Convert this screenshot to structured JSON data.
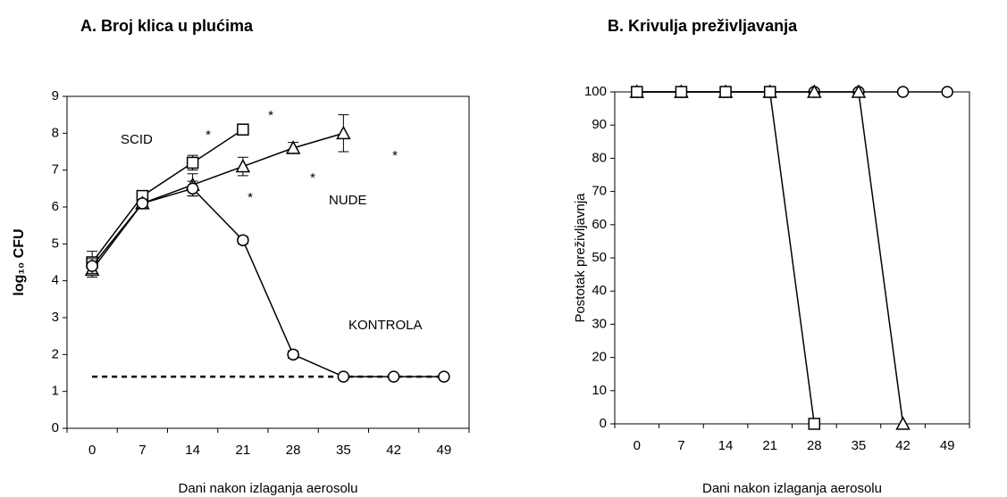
{
  "chart_data": [
    {
      "type": "line",
      "title": "A. Broj klica u plućima",
      "x_label": "Dani nakon izlaganja aerosolu",
      "y_label": "log₁₀ CFU",
      "categories": [
        0,
        7,
        14,
        21,
        28,
        35,
        42,
        49
      ],
      "ylim": [
        0,
        9
      ],
      "yticks": [
        0,
        1,
        2,
        3,
        4,
        5,
        6,
        7,
        8,
        9
      ],
      "reference_line": 1.4,
      "series": [
        {
          "name": "SCID",
          "marker": "square",
          "color": "#000000",
          "values": [
            4.5,
            6.3,
            7.2,
            8.1,
            null,
            null,
            null,
            null
          ],
          "errors": [
            0.3,
            0.1,
            0.2,
            0.1,
            null,
            null,
            null,
            null
          ]
        },
        {
          "name": "NUDE",
          "marker": "triangle",
          "color": "#000000",
          "values": [
            4.3,
            6.1,
            6.6,
            7.1,
            7.6,
            8.0,
            null,
            null
          ],
          "errors": [
            0.2,
            0.1,
            0.3,
            0.25,
            0.15,
            0.5,
            null,
            null
          ]
        },
        {
          "name": "KONTROLA",
          "marker": "circle",
          "color": "#000000",
          "values": [
            4.4,
            6.1,
            6.5,
            5.1,
            2.0,
            1.4,
            1.4,
            1.4
          ],
          "errors": [
            0.2,
            0.1,
            0.2,
            0.1,
            0.1,
            0.05,
            0.05,
            0.05
          ]
        }
      ],
      "annotations": [
        "*",
        "*",
        "*",
        "*",
        "*"
      ]
    },
    {
      "type": "line",
      "title": "B. Krivulja preživljavanja",
      "x_label": "Dani nakon izlaganja aerosolu",
      "y_label": "Postotak preživljavnja",
      "categories": [
        0,
        7,
        14,
        21,
        28,
        35,
        42,
        49
      ],
      "ylim": [
        0,
        100
      ],
      "yticks": [
        0,
        10,
        20,
        30,
        40,
        50,
        60,
        70,
        80,
        90,
        100
      ],
      "series": [
        {
          "marker": "circle",
          "color": "#000000",
          "values": [
            100,
            100,
            100,
            100,
            100,
            100,
            100,
            100
          ]
        },
        {
          "marker": "triangle",
          "color": "#000000",
          "values": [
            100,
            100,
            100,
            100,
            100,
            100,
            0,
            null
          ]
        },
        {
          "marker": "square",
          "color": "#000000",
          "values": [
            100,
            100,
            100,
            100,
            0,
            null,
            null,
            null
          ]
        }
      ]
    }
  ]
}
